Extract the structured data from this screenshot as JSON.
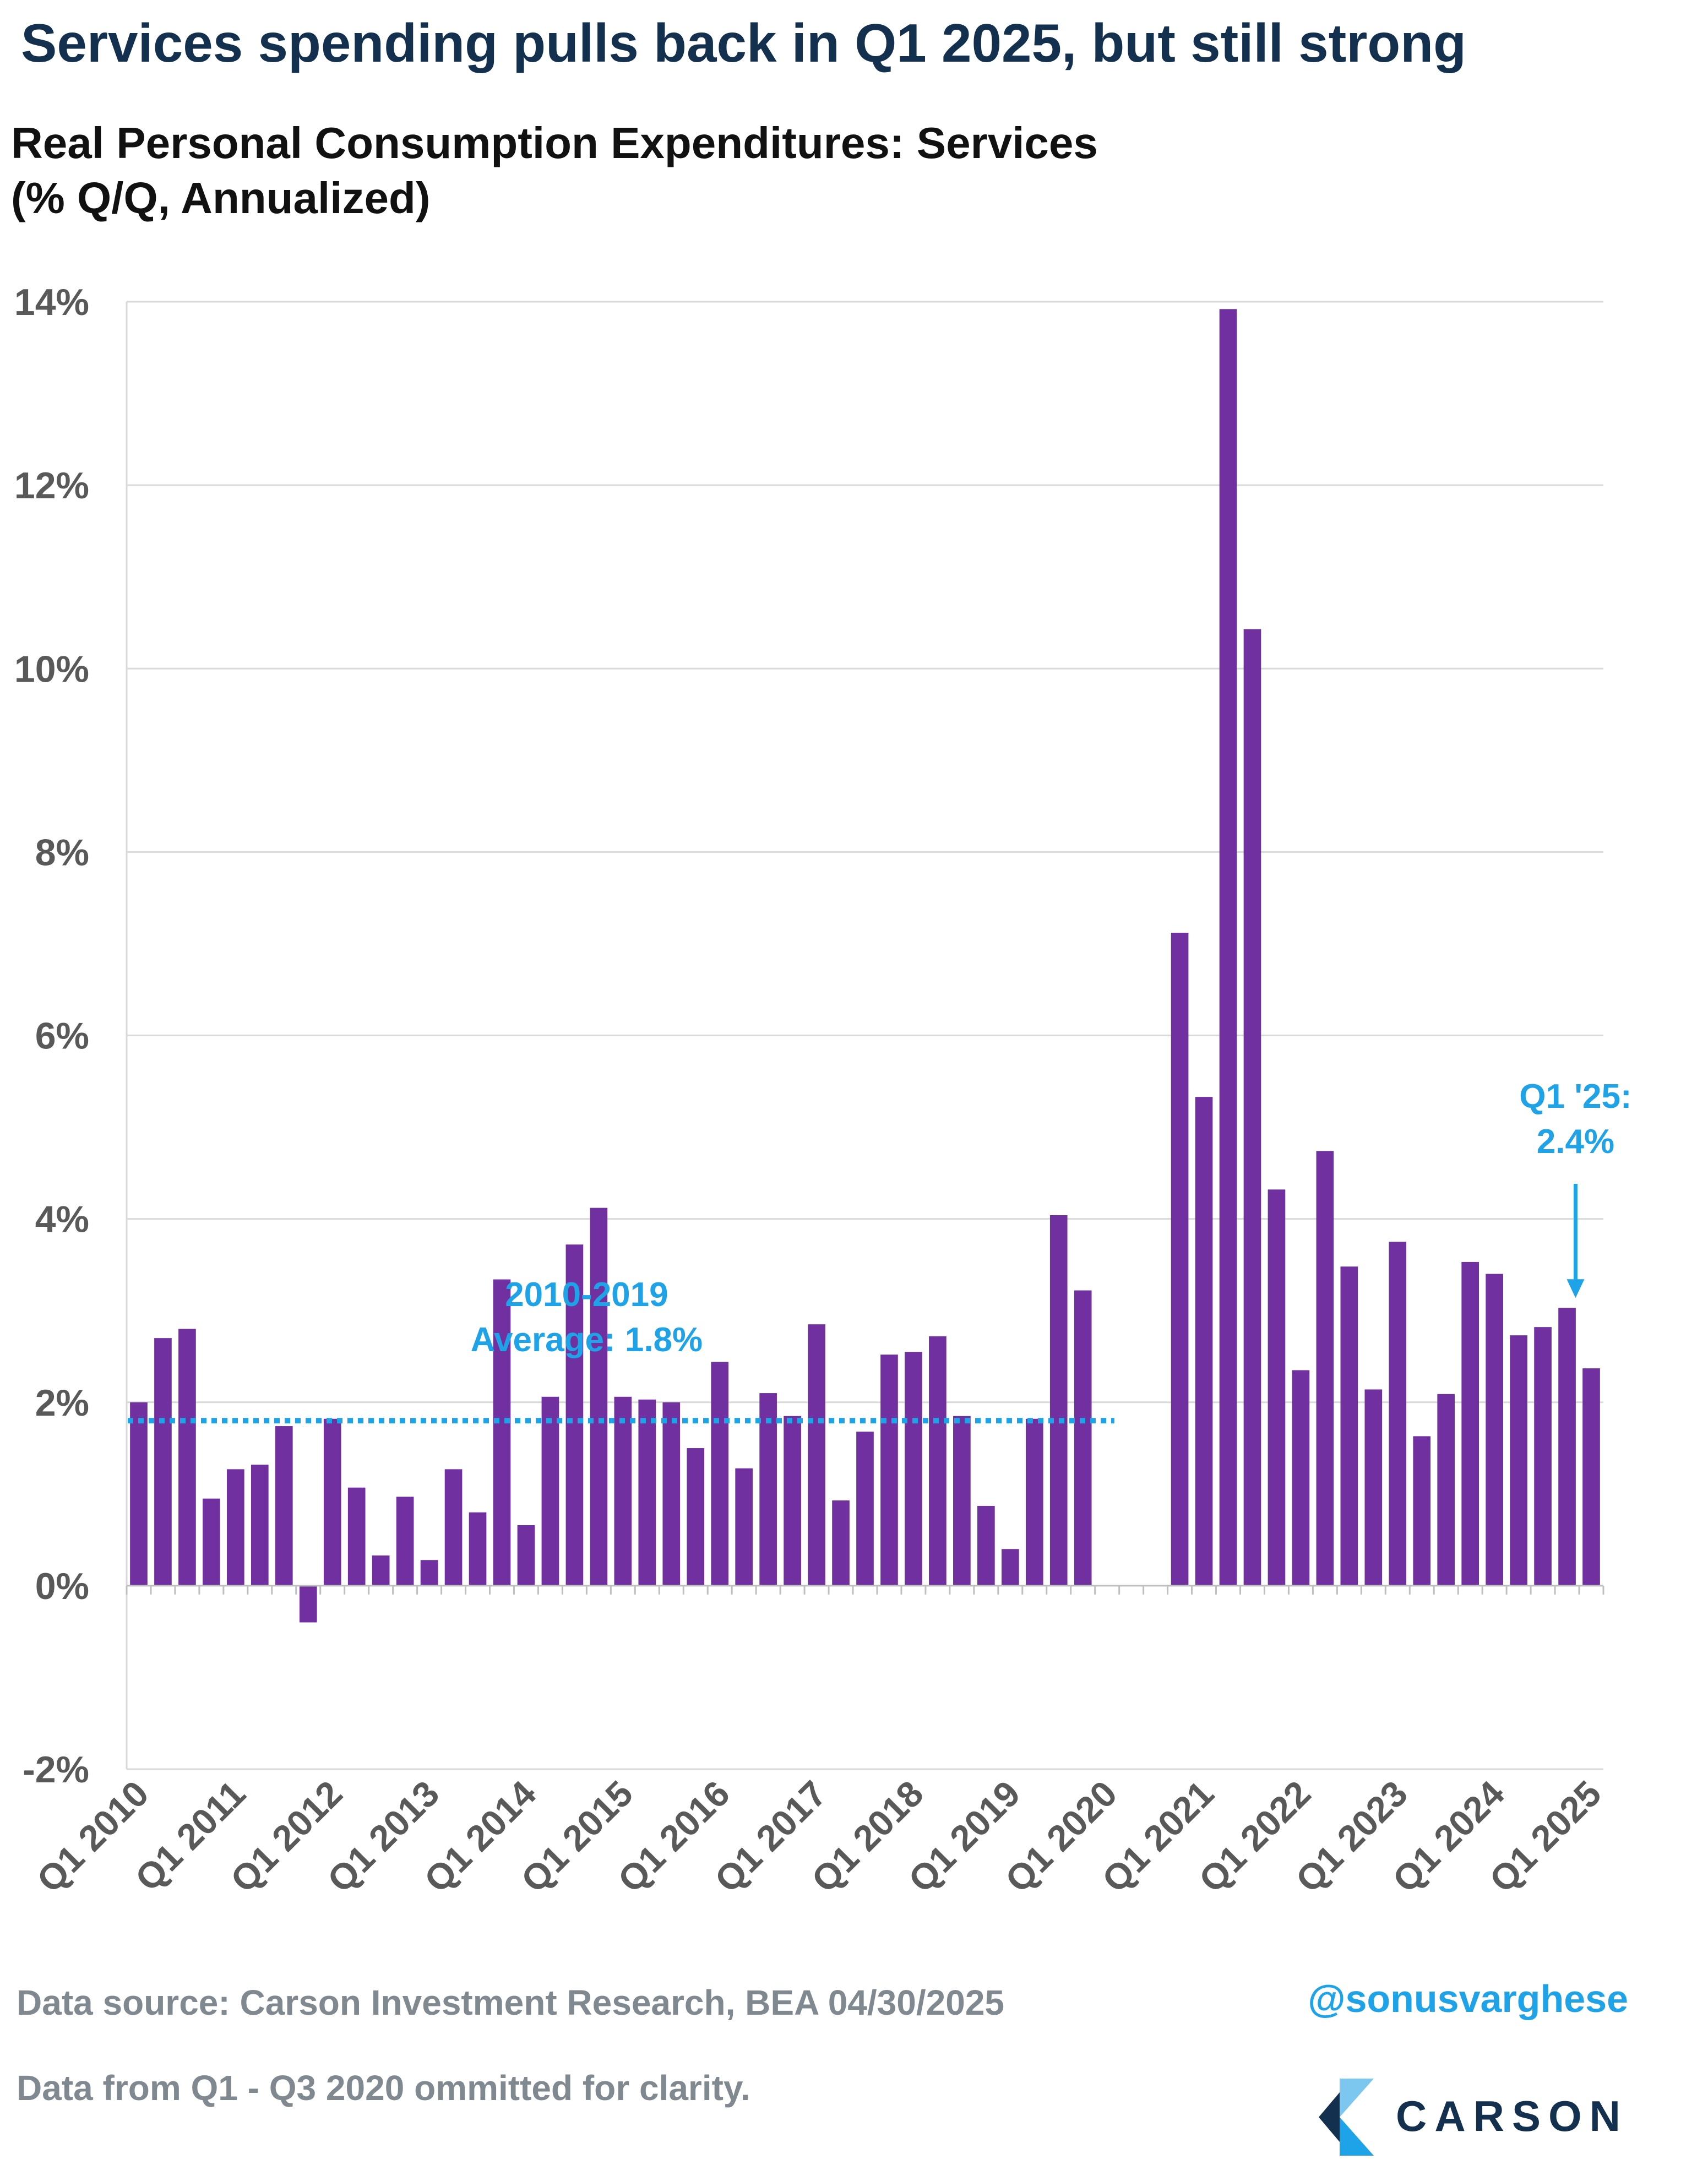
{
  "title": "Services spending pulls back in Q1 2025, but still strong",
  "subtitle_lines": [
    "Real Personal Consumption Expenditures: Services",
    "(% Q/Q, Annualized)"
  ],
  "footer": {
    "source": "Data source: Carson Investment Research, BEA   04/30/2025",
    "note": "Data from Q1 - Q3 2020 ommitted for clarity.",
    "handle": "@sonusvarghese",
    "logo_text": "CARSON"
  },
  "chart_data": {
    "type": "bar",
    "ylim": [
      -2,
      14
    ],
    "yticks": [
      -2,
      0,
      2,
      4,
      6,
      8,
      10,
      12,
      14
    ],
    "ytick_labels": [
      "-2%",
      "0%",
      "2%",
      "4%",
      "6%",
      "8%",
      "10%",
      "12%",
      "14%"
    ],
    "grid": true,
    "xtick_labels": [
      "Q1 2010",
      "Q1 2011",
      "Q1 2012",
      "Q1 2013",
      "Q1 2014",
      "Q1 2015",
      "Q1 2016",
      "Q1 2017",
      "Q1 2018",
      "Q1 2019",
      "Q1 2020",
      "Q1 2021",
      "Q1 2022",
      "Q1 2023",
      "Q1 2024",
      "Q1 2025"
    ],
    "categories": [
      "Q1 2010",
      "Q2 2010",
      "Q3 2010",
      "Q4 2010",
      "Q1 2011",
      "Q2 2011",
      "Q3 2011",
      "Q4 2011",
      "Q1 2012",
      "Q2 2012",
      "Q3 2012",
      "Q4 2012",
      "Q1 2013",
      "Q2 2013",
      "Q3 2013",
      "Q4 2013",
      "Q1 2014",
      "Q2 2014",
      "Q3 2014",
      "Q4 2014",
      "Q1 2015",
      "Q2 2015",
      "Q3 2015",
      "Q4 2015",
      "Q1 2016",
      "Q2 2016",
      "Q3 2016",
      "Q4 2016",
      "Q1 2017",
      "Q2 2017",
      "Q3 2017",
      "Q4 2017",
      "Q1 2018",
      "Q2 2018",
      "Q3 2018",
      "Q4 2018",
      "Q1 2019",
      "Q2 2019",
      "Q3 2019",
      "Q4 2019",
      "Q1 2020",
      "Q2 2020",
      "Q3 2020",
      "Q4 2020",
      "Q1 2021",
      "Q2 2021",
      "Q3 2021",
      "Q4 2021",
      "Q1 2022",
      "Q2 2022",
      "Q3 2022",
      "Q4 2022",
      "Q1 2023",
      "Q2 2023",
      "Q3 2023",
      "Q4 2023",
      "Q1 2024",
      "Q2 2024",
      "Q3 2024",
      "Q4 2024",
      "Q1 2025"
    ],
    "values": [
      2.0,
      2.7,
      2.8,
      0.95,
      1.27,
      1.32,
      1.74,
      -0.4,
      1.82,
      1.07,
      0.33,
      0.97,
      0.28,
      1.27,
      0.8,
      3.34,
      0.66,
      2.06,
      3.72,
      4.12,
      2.06,
      2.03,
      2.0,
      1.5,
      2.44,
      1.28,
      2.1,
      1.85,
      2.85,
      0.93,
      1.68,
      2.52,
      2.55,
      2.72,
      1.85,
      0.87,
      0.4,
      1.82,
      4.04,
      3.22,
      null,
      null,
      null,
      7.12,
      5.33,
      13.92,
      10.43,
      4.32,
      2.35,
      4.74,
      3.48,
      2.14,
      3.75,
      1.63,
      2.09,
      3.53,
      3.4,
      2.73,
      2.82,
      3.03,
      2.37
    ],
    "bar_color": "#7030a0",
    "reference_line": {
      "label_lines": [
        "2010-2019",
        "Average: 1.8%"
      ],
      "value": 1.8,
      "from": "Q1 2010",
      "to": "Q1 2020",
      "color": "#1fa3e8",
      "style": "dotted"
    },
    "annotation": {
      "label_lines": [
        "Q1 '25:",
        "2.4%"
      ],
      "target": "Q1 2025",
      "color": "#1fa3e8"
    }
  }
}
